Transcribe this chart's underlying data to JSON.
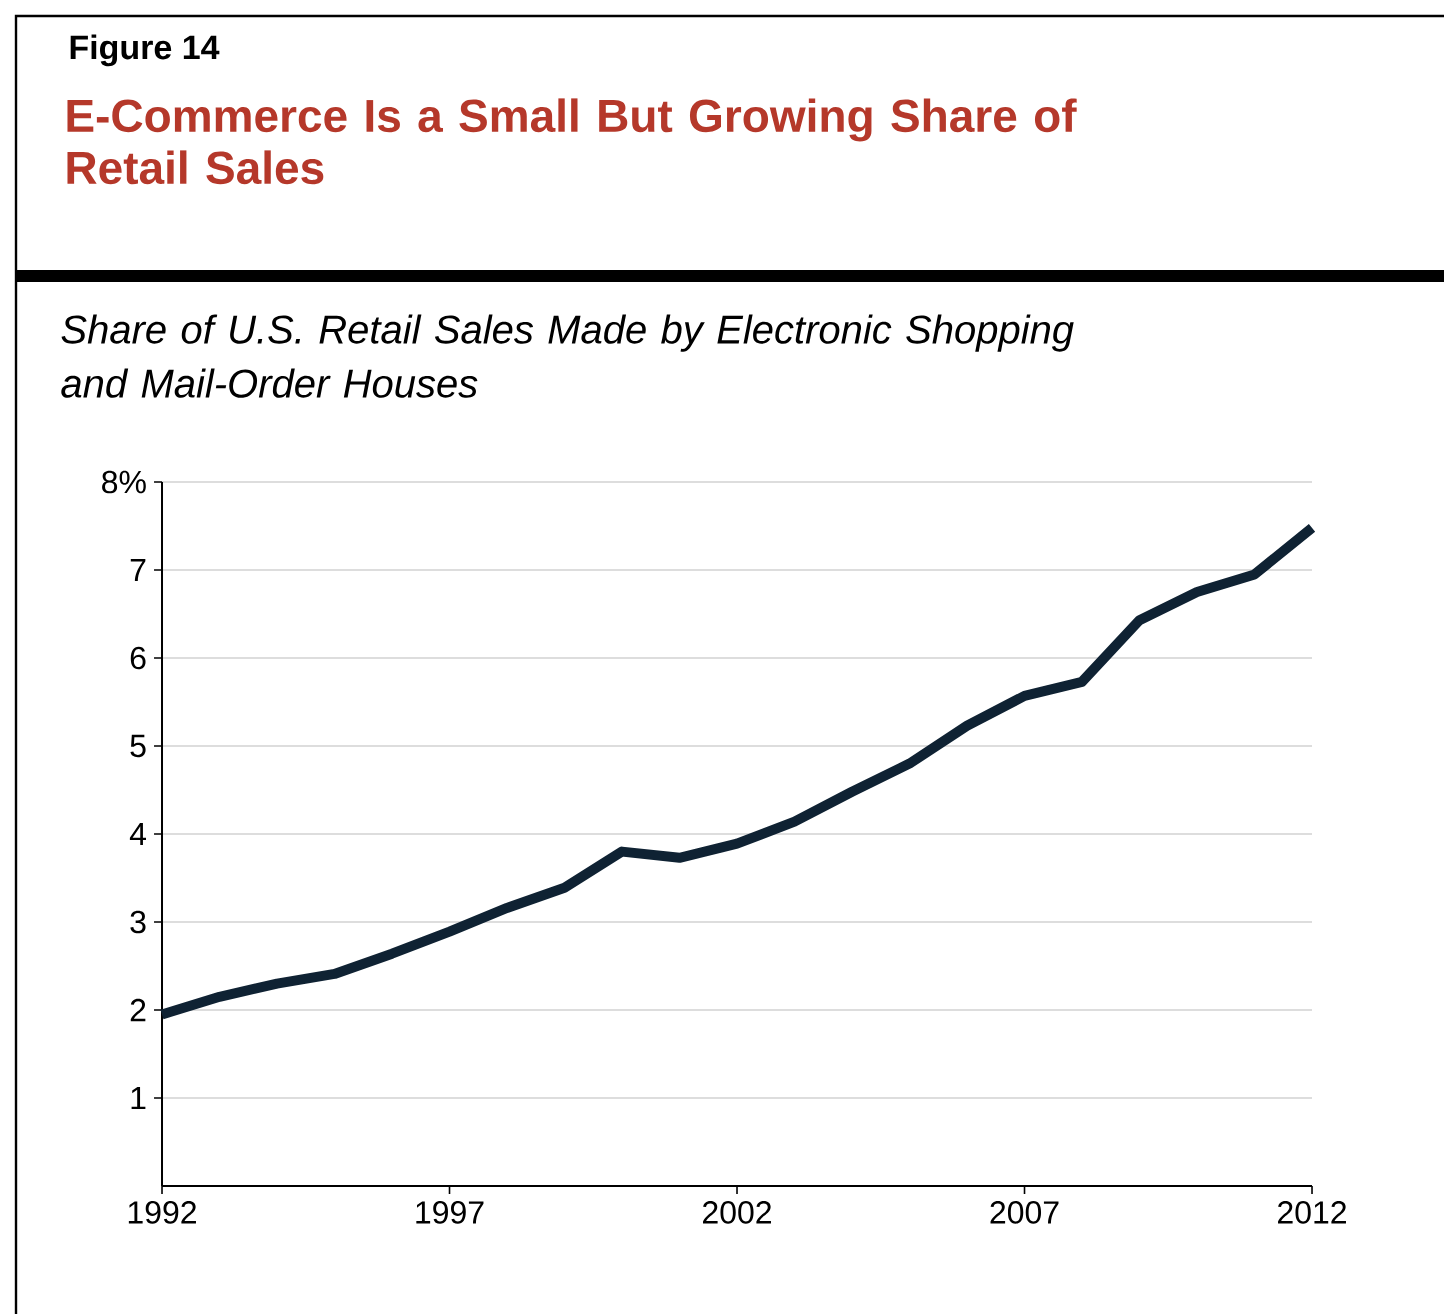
{
  "chart_data": {
    "type": "line",
    "title": "E-Commerce Is a Small But Growing Share of Retail Sales",
    "subtitle": "Share of U.S. Retail Sales Made by Electronic Shopping and Mail-Order Houses",
    "annotations": [
      "Figure 14"
    ],
    "x": [
      1992,
      1993,
      1994,
      1995,
      1996,
      1997,
      1998,
      1999,
      2000,
      2001,
      2002,
      2003,
      2004,
      2005,
      2006,
      2007,
      2008,
      2009,
      2010,
      2011,
      2012
    ],
    "series": [
      {
        "color": "#0f2233",
        "values": [
          1.95,
          2.15,
          2.3,
          2.41,
          2.64,
          2.89,
          3.16,
          3.39,
          3.8,
          3.73,
          3.89,
          4.14,
          4.48,
          4.8,
          5.23,
          5.57,
          5.73,
          6.43,
          6.75,
          6.95,
          7.48
        ]
      }
    ],
    "xlim": [
      1992,
      2012
    ],
    "xticks": [
      1992,
      1997,
      2002,
      2007,
      2012
    ],
    "ylim": [
      0,
      8
    ],
    "yticks": [
      1,
      2,
      3,
      4,
      5,
      6,
      7,
      {
        "value": 8,
        "label": "8%"
      }
    ],
    "grid": "y"
  }
}
